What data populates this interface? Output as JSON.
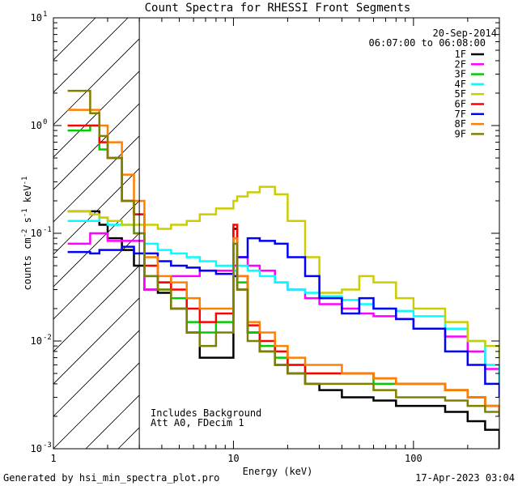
{
  "chart_data": {
    "type": "line",
    "title": "Count Spectra for RHESSI Front Segments",
    "xlabel": "Energy (keV)",
    "ylabel": "counts cm^-2 s^-1 keV^-1",
    "xscale": "log",
    "yscale": "log",
    "xlim": [
      1,
      300
    ],
    "ylim": [
      0.001,
      10
    ],
    "x_ticks": [
      {
        "value": 1,
        "label": "1"
      },
      {
        "value": 10,
        "label": "10"
      },
      {
        "value": 100,
        "label": "100"
      }
    ],
    "y_ticks": [
      {
        "value": 0.001,
        "base": "10",
        "exp": "-3"
      },
      {
        "value": 0.01,
        "base": "10",
        "exp": "-2"
      },
      {
        "value": 0.1,
        "base": "10",
        "exp": "-1"
      },
      {
        "value": 1,
        "base": "10",
        "exp": "0"
      },
      {
        "value": 10,
        "base": "10",
        "exp": "1"
      }
    ],
    "hatched_region": [
      1,
      3
    ],
    "date": "20-Sep-2014",
    "time_range": "06:07:00 to 06:08:00",
    "annotations": [
      "Includes Background",
      "Att A0, FDecim 1"
    ],
    "series": [
      {
        "name": "1F",
        "color": "#000000",
        "x": [
          1.2,
          1.4,
          1.6,
          1.8,
          2.0,
          2.4,
          2.8,
          3.2,
          3.8,
          4.5,
          5.5,
          6.5,
          8.0,
          10.0,
          10.5,
          12.0,
          14.0,
          17.0,
          20.0,
          25.0,
          30.0,
          40.0,
          50.0,
          60.0,
          80.0,
          100.0,
          150.0,
          200.0,
          250.0,
          300.0
        ],
        "y": [
          0.16,
          0.16,
          0.16,
          0.12,
          0.09,
          0.07,
          0.05,
          0.03,
          0.028,
          0.02,
          0.012,
          0.007,
          0.007,
          0.11,
          0.03,
          0.012,
          0.008,
          0.006,
          0.005,
          0.004,
          0.0035,
          0.003,
          0.003,
          0.0028,
          0.0025,
          0.0025,
          0.0022,
          0.0018,
          0.0015,
          0.001
        ]
      },
      {
        "name": "2F",
        "color": "#ff00ff",
        "x": [
          1.2,
          1.4,
          1.6,
          1.8,
          2.0,
          2.4,
          2.8,
          3.2,
          3.8,
          4.5,
          5.5,
          6.5,
          8.0,
          10.0,
          10.5,
          12.0,
          14.0,
          17.0,
          20.0,
          25.0,
          30.0,
          40.0,
          50.0,
          60.0,
          80.0,
          100.0,
          150.0,
          200.0,
          250.0,
          300.0
        ],
        "y": [
          0.08,
          0.08,
          0.1,
          0.1,
          0.085,
          0.085,
          0.085,
          0.03,
          0.035,
          0.04,
          0.04,
          0.045,
          0.045,
          0.05,
          0.06,
          0.05,
          0.045,
          0.035,
          0.03,
          0.025,
          0.022,
          0.02,
          0.018,
          0.017,
          0.016,
          0.013,
          0.011,
          0.008,
          0.0055,
          0.004
        ]
      },
      {
        "name": "3F",
        "color": "#00cc00",
        "x": [
          1.2,
          1.4,
          1.6,
          1.8,
          2.0,
          2.4,
          2.8,
          3.2,
          3.8,
          4.5,
          5.5,
          6.5,
          8.0,
          10.0,
          10.5,
          12.0,
          14.0,
          17.0,
          20.0,
          25.0,
          30.0,
          40.0,
          50.0,
          60.0,
          80.0,
          100.0,
          150.0,
          200.0,
          250.0,
          300.0
        ],
        "y": [
          0.9,
          0.9,
          1.0,
          0.6,
          0.5,
          0.2,
          0.15,
          0.04,
          0.03,
          0.025,
          0.015,
          0.012,
          0.015,
          0.09,
          0.035,
          0.012,
          0.009,
          0.007,
          0.006,
          0.005,
          0.005,
          0.005,
          0.005,
          0.004,
          0.004,
          0.004,
          0.0035,
          0.003,
          0.0025,
          0.002
        ]
      },
      {
        "name": "4F",
        "color": "#00ffff",
        "x": [
          1.2,
          1.4,
          1.6,
          1.8,
          2.0,
          2.4,
          2.8,
          3.2,
          3.8,
          4.5,
          5.5,
          6.5,
          8.0,
          10.0,
          10.5,
          12.0,
          14.0,
          17.0,
          20.0,
          25.0,
          30.0,
          40.0,
          50.0,
          60.0,
          80.0,
          100.0,
          150.0,
          200.0,
          250.0,
          300.0
        ],
        "y": [
          0.13,
          0.13,
          0.13,
          0.14,
          0.12,
          0.12,
          0.1,
          0.08,
          0.07,
          0.065,
          0.06,
          0.055,
          0.05,
          0.045,
          0.05,
          0.045,
          0.04,
          0.035,
          0.03,
          0.028,
          0.026,
          0.024,
          0.022,
          0.02,
          0.019,
          0.017,
          0.013,
          0.01,
          0.006,
          0.004
        ]
      },
      {
        "name": "5F",
        "color": "#cccc00",
        "x": [
          1.2,
          1.4,
          1.6,
          1.8,
          2.0,
          2.4,
          2.8,
          3.2,
          3.8,
          4.5,
          5.5,
          6.5,
          8.0,
          10.0,
          10.5,
          12.0,
          14.0,
          17.0,
          20.0,
          25.0,
          30.0,
          40.0,
          50.0,
          60.0,
          80.0,
          100.0,
          150.0,
          200.0,
          250.0,
          300.0
        ],
        "y": [
          0.16,
          0.16,
          0.15,
          0.14,
          0.13,
          0.12,
          0.12,
          0.12,
          0.11,
          0.12,
          0.13,
          0.15,
          0.17,
          0.2,
          0.22,
          0.24,
          0.27,
          0.23,
          0.13,
          0.06,
          0.028,
          0.03,
          0.04,
          0.035,
          0.025,
          0.02,
          0.015,
          0.01,
          0.009,
          0.007
        ]
      },
      {
        "name": "6F",
        "color": "#ff0000",
        "x": [
          1.2,
          1.4,
          1.6,
          1.8,
          2.0,
          2.4,
          2.8,
          3.2,
          3.8,
          4.5,
          5.5,
          6.5,
          8.0,
          10.0,
          10.5,
          12.0,
          14.0,
          17.0,
          20.0,
          25.0,
          30.0,
          40.0,
          50.0,
          60.0,
          80.0,
          100.0,
          150.0,
          200.0,
          250.0,
          300.0
        ],
        "y": [
          1.0,
          1.0,
          1.0,
          0.7,
          0.5,
          0.2,
          0.15,
          0.05,
          0.035,
          0.03,
          0.02,
          0.015,
          0.018,
          0.12,
          0.04,
          0.014,
          0.01,
          0.008,
          0.006,
          0.005,
          0.005,
          0.005,
          0.005,
          0.0045,
          0.004,
          0.004,
          0.0035,
          0.003,
          0.0025,
          0.002
        ]
      },
      {
        "name": "7F",
        "color": "#0000ff",
        "x": [
          1.2,
          1.4,
          1.6,
          1.8,
          2.0,
          2.4,
          2.8,
          3.2,
          3.8,
          4.5,
          5.5,
          6.5,
          8.0,
          10.0,
          10.5,
          12.0,
          14.0,
          17.0,
          20.0,
          25.0,
          30.0,
          40.0,
          50.0,
          60.0,
          80.0,
          100.0,
          150.0,
          200.0,
          250.0,
          300.0
        ],
        "y": [
          0.067,
          0.067,
          0.065,
          0.07,
          0.07,
          0.075,
          0.065,
          0.065,
          0.055,
          0.05,
          0.048,
          0.045,
          0.042,
          0.04,
          0.06,
          0.09,
          0.085,
          0.08,
          0.06,
          0.04,
          0.025,
          0.018,
          0.025,
          0.02,
          0.016,
          0.013,
          0.008,
          0.006,
          0.004,
          0.003
        ]
      },
      {
        "name": "8F",
        "color": "#ff8000",
        "x": [
          1.2,
          1.4,
          1.6,
          1.8,
          2.0,
          2.4,
          2.8,
          3.2,
          3.8,
          4.5,
          5.5,
          6.5,
          8.0,
          10.0,
          10.5,
          12.0,
          14.0,
          17.0,
          20.0,
          25.0,
          30.0,
          40.0,
          50.0,
          60.0,
          80.0,
          100.0,
          150.0,
          200.0,
          250.0,
          300.0
        ],
        "y": [
          1.4,
          1.4,
          1.4,
          1.0,
          0.7,
          0.35,
          0.2,
          0.06,
          0.04,
          0.035,
          0.025,
          0.02,
          0.02,
          0.09,
          0.04,
          0.015,
          0.012,
          0.009,
          0.007,
          0.006,
          0.006,
          0.005,
          0.005,
          0.0045,
          0.004,
          0.004,
          0.0035,
          0.003,
          0.0025,
          0.002
        ]
      },
      {
        "name": "9F",
        "color": "#808000",
        "x": [
          1.2,
          1.4,
          1.6,
          1.8,
          2.0,
          2.4,
          2.8,
          3.2,
          3.8,
          4.5,
          5.5,
          6.5,
          8.0,
          10.0,
          10.5,
          12.0,
          14.0,
          17.0,
          20.0,
          25.0,
          30.0,
          40.0,
          50.0,
          60.0,
          80.0,
          100.0,
          150.0,
          200.0,
          250.0,
          300.0
        ],
        "y": [
          2.1,
          2.1,
          1.3,
          0.8,
          0.5,
          0.2,
          0.1,
          0.04,
          0.03,
          0.02,
          0.012,
          0.009,
          0.012,
          0.08,
          0.03,
          0.01,
          0.008,
          0.006,
          0.005,
          0.004,
          0.004,
          0.004,
          0.004,
          0.0035,
          0.003,
          0.003,
          0.0028,
          0.0025,
          0.0022,
          0.002
        ]
      }
    ]
  },
  "footer": {
    "generated_by": "Generated by hsi_min_spectra_plot.pro",
    "timestamp": "17-Apr-2023 03:04"
  }
}
